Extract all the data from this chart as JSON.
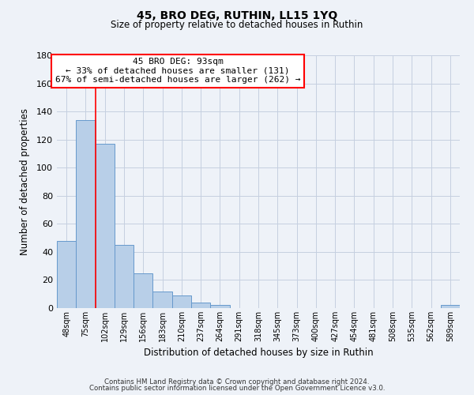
{
  "title": "45, BRO DEG, RUTHIN, LL15 1YQ",
  "subtitle": "Size of property relative to detached houses in Ruthin",
  "xlabel": "Distribution of detached houses by size in Ruthin",
  "ylabel": "Number of detached properties",
  "bin_labels": [
    "48sqm",
    "75sqm",
    "102sqm",
    "129sqm",
    "156sqm",
    "183sqm",
    "210sqm",
    "237sqm",
    "264sqm",
    "291sqm",
    "318sqm",
    "345sqm",
    "373sqm",
    "400sqm",
    "427sqm",
    "454sqm",
    "481sqm",
    "508sqm",
    "535sqm",
    "562sqm",
    "589sqm"
  ],
  "bar_values": [
    48,
    134,
    117,
    45,
    25,
    12,
    9,
    4,
    2,
    0,
    0,
    0,
    0,
    0,
    0,
    0,
    0,
    0,
    0,
    0,
    2
  ],
  "bar_color": "#b8cfe8",
  "bar_edge_color": "#6699cc",
  "ylim": [
    0,
    180
  ],
  "yticks": [
    0,
    20,
    40,
    60,
    80,
    100,
    120,
    140,
    160,
    180
  ],
  "red_line_x": 2,
  "annotation_title": "45 BRO DEG: 93sqm",
  "annotation_line1": "← 33% of detached houses are smaller (131)",
  "annotation_line2": "67% of semi-detached houses are larger (262) →",
  "footer_line1": "Contains HM Land Registry data © Crown copyright and database right 2024.",
  "footer_line2": "Contains public sector information licensed under the Open Government Licence v3.0.",
  "background_color": "#eef2f8",
  "plot_bg_color": "#eef2f8",
  "grid_color": "#c5cfe0"
}
